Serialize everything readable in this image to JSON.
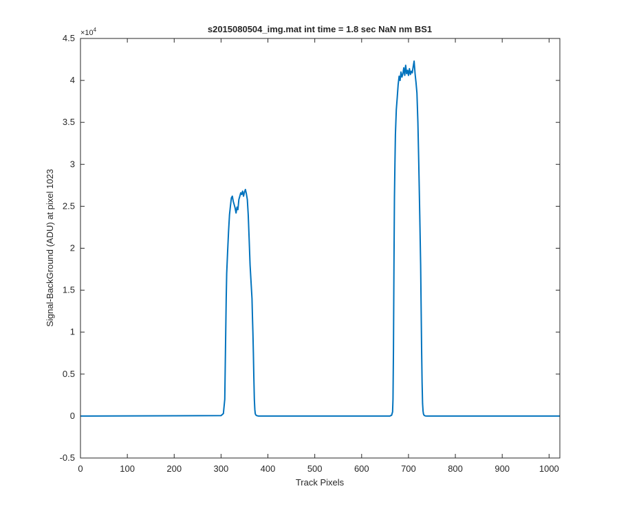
{
  "chart_data": {
    "type": "line",
    "title": "s2015080504_img.mat int time = 1.8 sec  NaN nm BS1",
    "xlabel": "Track Pixels",
    "ylabel": "Signal-BackGround (ADU) at pixel 1023",
    "xlim": [
      0,
      1023
    ],
    "ylim": [
      -5000,
      45000
    ],
    "y_exponent_label": "×10",
    "y_exponent_power": "4",
    "x_ticks": [
      0,
      100,
      200,
      300,
      400,
      500,
      600,
      700,
      800,
      900,
      1000
    ],
    "x_tick_labels": [
      "0",
      "100",
      "200",
      "300",
      "400",
      "500",
      "600",
      "700",
      "800",
      "900",
      "1000"
    ],
    "y_ticks": [
      -5000,
      0,
      5000,
      10000,
      15000,
      20000,
      25000,
      30000,
      35000,
      40000,
      45000
    ],
    "y_tick_labels": [
      "-0.5",
      "0",
      "0.5",
      "1",
      "1.5",
      "2",
      "2.5",
      "3",
      "3.5",
      "4",
      "4.5"
    ],
    "grid": false,
    "line_color": "#0072BD",
    "series": [
      {
        "x": [
          0,
          300,
          305,
          308,
          309,
          310,
          311,
          312,
          314,
          316,
          318,
          320,
          322,
          324,
          326,
          328,
          330,
          332,
          334,
          336,
          338,
          340,
          342,
          344,
          346,
          348,
          350,
          352,
          354,
          356,
          358,
          360,
          362,
          364,
          366,
          367,
          368,
          369,
          370,
          371,
          372,
          373,
          374,
          376,
          380,
          660,
          664,
          666,
          667,
          668,
          669,
          670,
          671,
          672,
          674,
          676,
          678,
          680,
          682,
          684,
          686,
          688,
          690,
          692,
          694,
          696,
          698,
          700,
          702,
          704,
          706,
          708,
          710,
          712,
          714,
          716,
          718,
          720,
          722,
          724,
          726,
          727,
          728,
          729,
          730,
          731,
          732,
          733,
          734,
          736,
          740,
          1023
        ],
        "y": [
          0,
          50,
          300,
          2000,
          6000,
          10000,
          14000,
          17000,
          19500,
          22000,
          24000,
          25000,
          26000,
          26200,
          25600,
          25200,
          24800,
          24200,
          24900,
          24600,
          25800,
          26200,
          26600,
          26400,
          26800,
          26200,
          26700,
          27000,
          26500,
          25800,
          24000,
          21000,
          18000,
          16000,
          14000,
          12000,
          10000,
          7500,
          4500,
          2000,
          800,
          300,
          150,
          50,
          0,
          0,
          100,
          500,
          2000,
          8000,
          18000,
          26000,
          30000,
          33500,
          36500,
          38000,
          39500,
          40500,
          40000,
          41000,
          40400,
          40800,
          41500,
          40600,
          41800,
          40800,
          41200,
          40600,
          41400,
          40700,
          41100,
          40900,
          41600,
          42300,
          40800,
          39800,
          38500,
          35000,
          30000,
          24000,
          18000,
          13000,
          8000,
          4000,
          1500,
          600,
          250,
          120,
          60,
          20,
          0,
          0
        ]
      }
    ]
  }
}
